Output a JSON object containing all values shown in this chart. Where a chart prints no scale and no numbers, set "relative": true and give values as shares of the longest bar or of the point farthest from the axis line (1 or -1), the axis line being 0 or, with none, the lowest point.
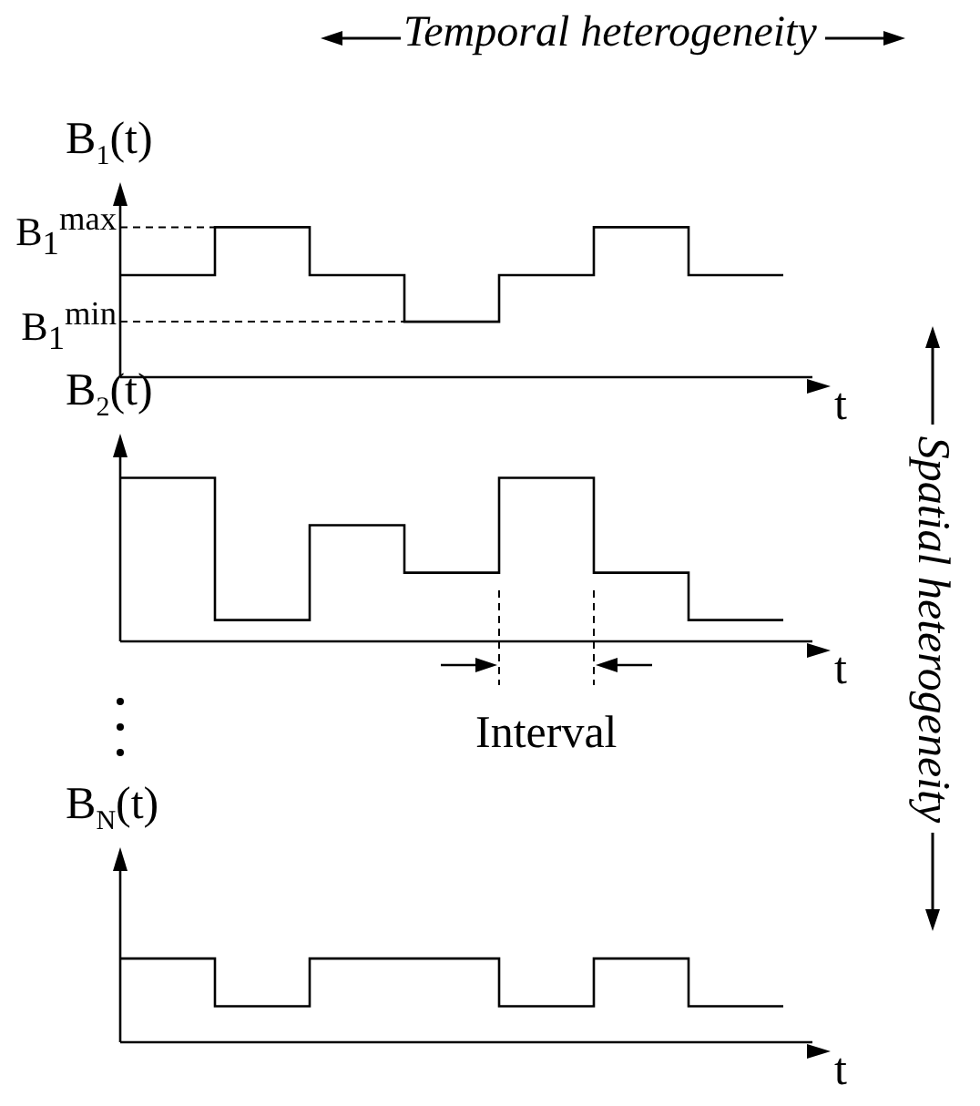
{
  "chart_data": [
    {
      "type": "step",
      "title": "Temporal heterogeneity",
      "annotations": [
        "Spatial heterogeneity"
      ],
      "ylabel": "B$_{1}$(t)",
      "xlabel": "t",
      "relative": true,
      "categories": [
        null,
        null,
        null,
        null,
        null,
        null,
        null,
        null
      ],
      "series": [
        {
          "color": "#000000",
          "values": [
            0.68,
            1,
            0.68,
            0.37,
            0.68,
            1,
            0.68,
            0.68
          ]
        }
      ],
      "ref_lines": [
        {
          "axis": "y",
          "value": 1,
          "label": "B$_{1}$$^{max}$",
          "line_style": "dashed"
        },
        {
          "axis": "y",
          "value": 0.37,
          "label": "B$_{1}$$^{min}$",
          "line_style": "dashed"
        }
      ]
    },
    {
      "type": "step",
      "ylabel": "B$_{2}$(t)",
      "xlabel": "t",
      "relative": true,
      "annotations": [
        "Interval"
      ],
      "categories": [
        null,
        null,
        null,
        null,
        null,
        null,
        null,
        null
      ],
      "series": [
        {
          "color": "#000000",
          "values": [
            1,
            0.13,
            0.71,
            0.42,
            1,
            0.42,
            0.13,
            0.13
          ]
        }
      ]
    },
    {
      "type": "step",
      "ylabel": "B$_{N}$(t)",
      "xlabel": "t",
      "relative": true,
      "categories": [
        null,
        null,
        null,
        null,
        null,
        null,
        null,
        null
      ],
      "series": [
        {
          "color": "#000000",
          "values": [
            1,
            0.43,
            1,
            1,
            0.43,
            1,
            0.43,
            0.43
          ]
        }
      ]
    }
  ]
}
